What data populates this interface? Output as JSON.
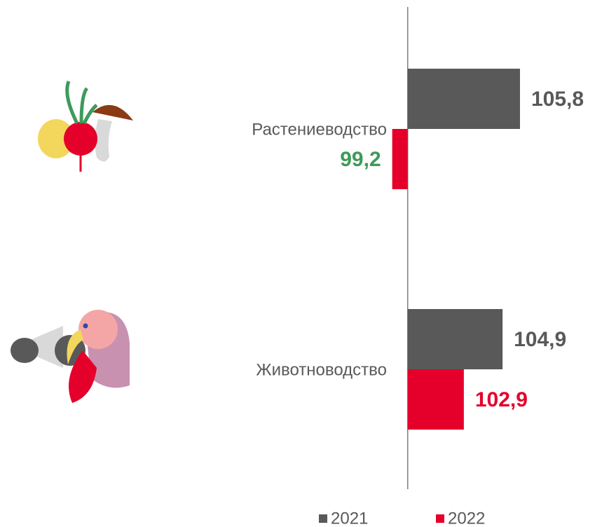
{
  "chart_data": {
    "type": "hbar",
    "categories": [
      "Растениеводство",
      "Животноводство"
    ],
    "series": [
      {
        "name": "2021",
        "color": "#595959",
        "values": [
          105.8,
          104.9
        ],
        "value_labels": [
          "105,8",
          "104,9"
        ],
        "label_colors": [
          "#595959",
          "#595959"
        ]
      },
      {
        "name": "2022",
        "color": "#e4002b",
        "values": [
          99.2,
          102.9
        ],
        "value_labels": [
          "99,2",
          "102,9"
        ],
        "label_colors": [
          "#3d9a5b",
          "#e4002b"
        ]
      }
    ],
    "baseline": 100,
    "xlim": [
      94,
      110
    ]
  }
}
